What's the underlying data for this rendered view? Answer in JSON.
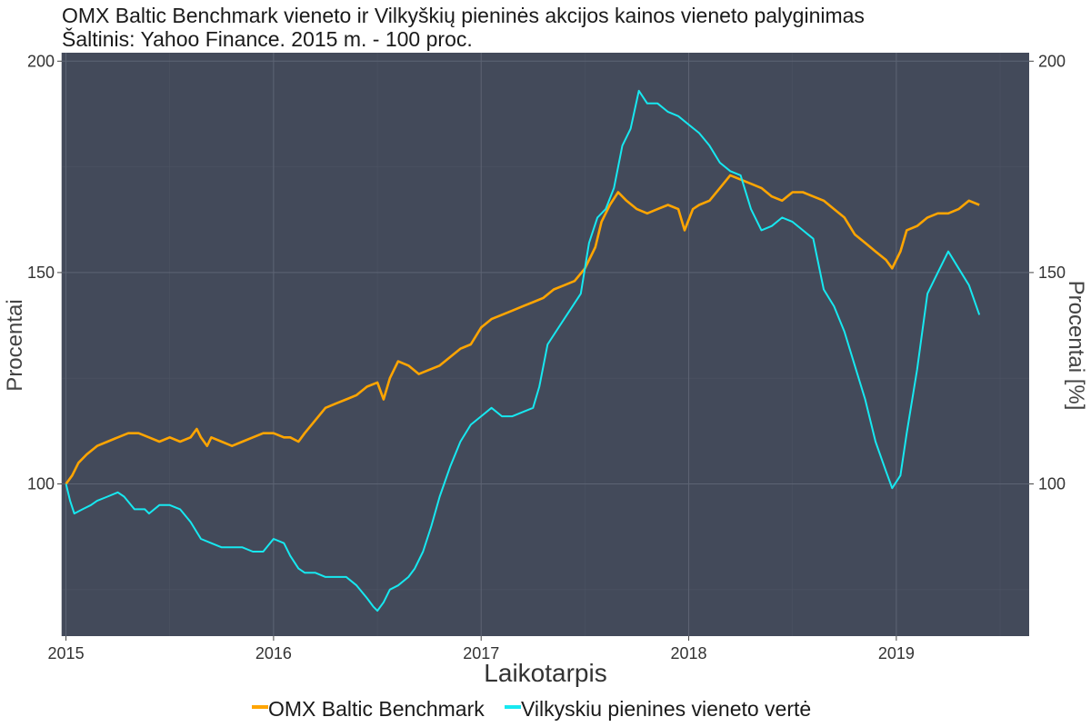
{
  "colors": {
    "panel": "#434a5a",
    "grid_major": "#5d6474",
    "grid_minor": "#4c5363",
    "benchmark": "#ffa500",
    "vilkyskiu": "#17e8f0"
  },
  "chart_data": {
    "type": "line",
    "title": "OMX Baltic Benchmark vieneto ir Vilkyškių pieninės akcijos kainos vieneto palyginimas",
    "subtitle": "Šaltinis: Yahoo Finance. 2015 m. - 100 proc.",
    "xlabel": "Laikotarpis",
    "ylabel": "Procentai",
    "ylabel_right": "Procentai [%]",
    "x_ticks": [
      2015,
      2016,
      2017,
      2018,
      2019
    ],
    "x_tick_labels": [
      "2015",
      "2016",
      "2017",
      "2018",
      "2019"
    ],
    "y_ticks": [
      100,
      150,
      200
    ],
    "y_tick_labels": [
      "100",
      "150",
      "200"
    ],
    "xlim": [
      2014.98,
      2019.64
    ],
    "ylim": [
      64,
      202
    ],
    "grid": true,
    "legend_position": "bottom",
    "series": [
      {
        "name": "OMX Baltic Benchmark",
        "color": "#ffa500",
        "points": [
          [
            2015.0,
            100
          ],
          [
            2015.03,
            102
          ],
          [
            2015.06,
            105
          ],
          [
            2015.1,
            107
          ],
          [
            2015.15,
            109
          ],
          [
            2015.2,
            110
          ],
          [
            2015.25,
            111
          ],
          [
            2015.3,
            112
          ],
          [
            2015.35,
            112
          ],
          [
            2015.4,
            111
          ],
          [
            2015.45,
            110
          ],
          [
            2015.5,
            111
          ],
          [
            2015.55,
            110
          ],
          [
            2015.6,
            111
          ],
          [
            2015.63,
            113
          ],
          [
            2015.65,
            111
          ],
          [
            2015.68,
            109
          ],
          [
            2015.7,
            111
          ],
          [
            2015.75,
            110
          ],
          [
            2015.8,
            109
          ],
          [
            2015.85,
            110
          ],
          [
            2015.9,
            111
          ],
          [
            2015.95,
            112
          ],
          [
            2016.0,
            112
          ],
          [
            2016.05,
            111
          ],
          [
            2016.08,
            111
          ],
          [
            2016.12,
            110
          ],
          [
            2016.15,
            112
          ],
          [
            2016.2,
            115
          ],
          [
            2016.25,
            118
          ],
          [
            2016.3,
            119
          ],
          [
            2016.35,
            120
          ],
          [
            2016.4,
            121
          ],
          [
            2016.45,
            123
          ],
          [
            2016.5,
            124
          ],
          [
            2016.53,
            120
          ],
          [
            2016.56,
            125
          ],
          [
            2016.6,
            129
          ],
          [
            2016.65,
            128
          ],
          [
            2016.7,
            126
          ],
          [
            2016.75,
            127
          ],
          [
            2016.8,
            128
          ],
          [
            2016.85,
            130
          ],
          [
            2016.9,
            132
          ],
          [
            2016.95,
            133
          ],
          [
            2017.0,
            137
          ],
          [
            2017.05,
            139
          ],
          [
            2017.1,
            140
          ],
          [
            2017.15,
            141
          ],
          [
            2017.2,
            142
          ],
          [
            2017.25,
            143
          ],
          [
            2017.3,
            144
          ],
          [
            2017.35,
            146
          ],
          [
            2017.4,
            147
          ],
          [
            2017.45,
            148
          ],
          [
            2017.5,
            151
          ],
          [
            2017.55,
            156
          ],
          [
            2017.58,
            162
          ],
          [
            2017.62,
            166
          ],
          [
            2017.66,
            169
          ],
          [
            2017.7,
            167
          ],
          [
            2017.75,
            165
          ],
          [
            2017.8,
            164
          ],
          [
            2017.85,
            165
          ],
          [
            2017.9,
            166
          ],
          [
            2017.95,
            165
          ],
          [
            2017.98,
            160
          ],
          [
            2018.02,
            165
          ],
          [
            2018.05,
            166
          ],
          [
            2018.1,
            167
          ],
          [
            2018.15,
            170
          ],
          [
            2018.2,
            173
          ],
          [
            2018.25,
            172
          ],
          [
            2018.3,
            171
          ],
          [
            2018.35,
            170
          ],
          [
            2018.4,
            168
          ],
          [
            2018.45,
            167
          ],
          [
            2018.5,
            169
          ],
          [
            2018.55,
            169
          ],
          [
            2018.6,
            168
          ],
          [
            2018.65,
            167
          ],
          [
            2018.7,
            165
          ],
          [
            2018.75,
            163
          ],
          [
            2018.8,
            159
          ],
          [
            2018.85,
            157
          ],
          [
            2018.9,
            155
          ],
          [
            2018.95,
            153
          ],
          [
            2018.98,
            151
          ],
          [
            2019.02,
            155
          ],
          [
            2019.05,
            160
          ],
          [
            2019.1,
            161
          ],
          [
            2019.15,
            163
          ],
          [
            2019.2,
            164
          ],
          [
            2019.25,
            164
          ],
          [
            2019.3,
            165
          ],
          [
            2019.35,
            167
          ],
          [
            2019.4,
            166
          ]
        ]
      },
      {
        "name": "Vilkyskiu pienines vieneto vertė",
        "color": "#17e8f0",
        "points": [
          [
            2015.0,
            100
          ],
          [
            2015.02,
            96
          ],
          [
            2015.04,
            93
          ],
          [
            2015.08,
            94
          ],
          [
            2015.12,
            95
          ],
          [
            2015.15,
            96
          ],
          [
            2015.2,
            97
          ],
          [
            2015.25,
            98
          ],
          [
            2015.28,
            97
          ],
          [
            2015.33,
            94
          ],
          [
            2015.38,
            94
          ],
          [
            2015.4,
            93
          ],
          [
            2015.45,
            95
          ],
          [
            2015.5,
            95
          ],
          [
            2015.55,
            94
          ],
          [
            2015.6,
            91
          ],
          [
            2015.65,
            87
          ],
          [
            2015.7,
            86
          ],
          [
            2015.75,
            85
          ],
          [
            2015.8,
            85
          ],
          [
            2015.85,
            85
          ],
          [
            2015.9,
            84
          ],
          [
            2015.95,
            84
          ],
          [
            2016.0,
            87
          ],
          [
            2016.05,
            86
          ],
          [
            2016.08,
            83
          ],
          [
            2016.12,
            80
          ],
          [
            2016.15,
            79
          ],
          [
            2016.2,
            79
          ],
          [
            2016.25,
            78
          ],
          [
            2016.3,
            78
          ],
          [
            2016.35,
            78
          ],
          [
            2016.4,
            76
          ],
          [
            2016.45,
            73
          ],
          [
            2016.48,
            71
          ],
          [
            2016.5,
            70
          ],
          [
            2016.53,
            72
          ],
          [
            2016.56,
            75
          ],
          [
            2016.6,
            76
          ],
          [
            2016.65,
            78
          ],
          [
            2016.68,
            80
          ],
          [
            2016.72,
            84
          ],
          [
            2016.76,
            90
          ],
          [
            2016.8,
            97
          ],
          [
            2016.85,
            104
          ],
          [
            2016.9,
            110
          ],
          [
            2016.95,
            114
          ],
          [
            2017.0,
            116
          ],
          [
            2017.05,
            118
          ],
          [
            2017.1,
            116
          ],
          [
            2017.15,
            116
          ],
          [
            2017.2,
            117
          ],
          [
            2017.25,
            118
          ],
          [
            2017.28,
            123
          ],
          [
            2017.32,
            133
          ],
          [
            2017.36,
            136
          ],
          [
            2017.4,
            139
          ],
          [
            2017.44,
            142
          ],
          [
            2017.48,
            145
          ],
          [
            2017.52,
            157
          ],
          [
            2017.56,
            163
          ],
          [
            2017.6,
            165
          ],
          [
            2017.64,
            170
          ],
          [
            2017.68,
            180
          ],
          [
            2017.72,
            184
          ],
          [
            2017.76,
            193
          ],
          [
            2017.8,
            190
          ],
          [
            2017.85,
            190
          ],
          [
            2017.9,
            188
          ],
          [
            2017.95,
            187
          ],
          [
            2018.0,
            185
          ],
          [
            2018.05,
            183
          ],
          [
            2018.1,
            180
          ],
          [
            2018.15,
            176
          ],
          [
            2018.2,
            174
          ],
          [
            2018.25,
            173
          ],
          [
            2018.3,
            165
          ],
          [
            2018.35,
            160
          ],
          [
            2018.4,
            161
          ],
          [
            2018.45,
            163
          ],
          [
            2018.5,
            162
          ],
          [
            2018.55,
            160
          ],
          [
            2018.6,
            158
          ],
          [
            2018.65,
            146
          ],
          [
            2018.7,
            142
          ],
          [
            2018.75,
            136
          ],
          [
            2018.8,
            128
          ],
          [
            2018.85,
            120
          ],
          [
            2018.9,
            110
          ],
          [
            2018.95,
            103
          ],
          [
            2018.98,
            99
          ],
          [
            2019.02,
            102
          ],
          [
            2019.05,
            112
          ],
          [
            2019.1,
            127
          ],
          [
            2019.15,
            145
          ],
          [
            2019.2,
            150
          ],
          [
            2019.25,
            155
          ],
          [
            2019.3,
            151
          ],
          [
            2019.35,
            147
          ],
          [
            2019.4,
            140
          ]
        ]
      }
    ]
  }
}
